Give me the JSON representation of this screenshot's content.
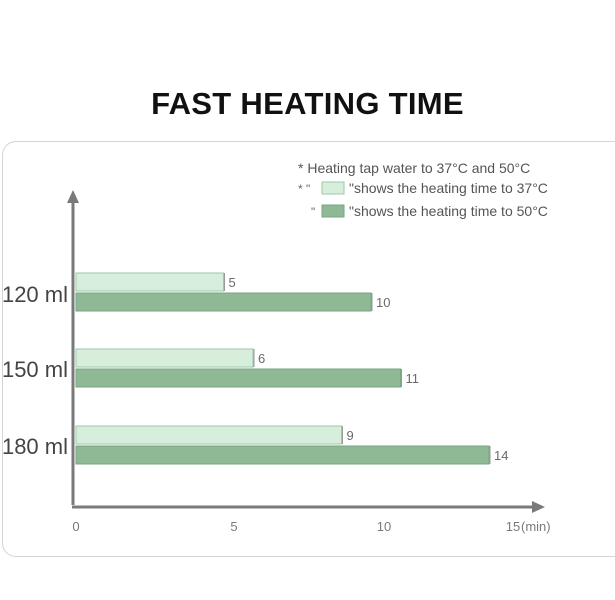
{
  "title": "FAST HEATING TIME",
  "colors": {
    "series_37": "#d7eedd",
    "series_37_border": "#9fc7a9",
    "series_50": "#8fb895",
    "series_50_border": "#7aa682",
    "axis": "#7a7a7a"
  },
  "notes": {
    "line1": "* Heating tap water to 37°C and 50°C",
    "line2_prefix": "* \"",
    "line2_text": "\"shows the heating time to 37°C",
    "line3_prefix": "\"",
    "line3_text": "\"shows the heating time to 50°C"
  },
  "chart_data": {
    "type": "bar",
    "orientation": "horizontal",
    "title": "FAST HEATING TIME",
    "categories": [
      "120 ml",
      "150 ml",
      "180 ml"
    ],
    "series": [
      {
        "name": "shows the heating time to 37°C",
        "values": [
          5,
          6,
          9
        ]
      },
      {
        "name": "shows the heating time to 50°C",
        "values": [
          10,
          11,
          14
        ]
      }
    ],
    "x_ticks": [
      "0",
      "5",
      "10",
      "15"
    ],
    "x_unit": "(min)",
    "xlim": [
      0,
      15
    ],
    "grid": false,
    "legend": "top-right"
  }
}
